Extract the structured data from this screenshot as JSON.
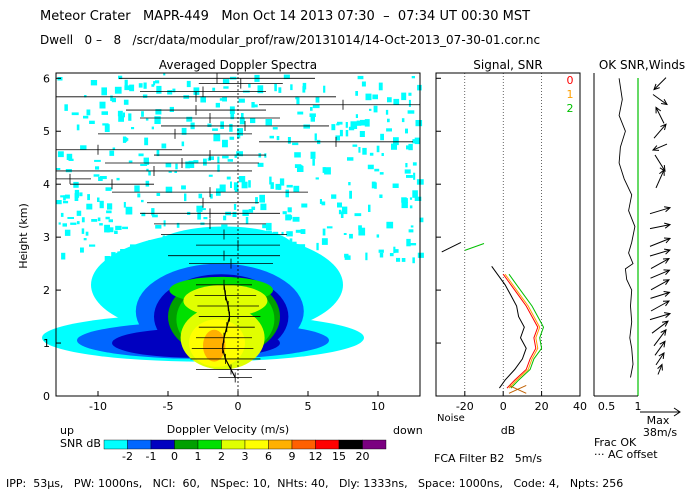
{
  "header": {
    "title": "Meteor Crater   MAPR-449   Mon Oct 14 2013 07:30  –  07:34 UT 00:30 MST",
    "dwell": "Dwell   0 –   8   /scr/data/modular_prof/raw/20131014/14-Oct-2013_07-30-01.cor.nc"
  },
  "footer": {
    "params": "IPP:  53μs,   PW: 1000ns,   NCI:  60,   NSpec: 10,  NHts: 40,   Dly: 1333ns,   Space: 1000ns,   Code: 4,   Npts: 256",
    "fca_filter": "FCA Filter B2   5m/s"
  },
  "colors": {
    "contour": [
      "#00ffff",
      "#0066ff",
      "#0000c0",
      "#00a000",
      "#00e000",
      "#e0ff00",
      "#ffff00",
      "#ffb000",
      "#ff6000",
      "#ff0000",
      "#000000",
      "#7a0080"
    ],
    "snr0": "#ff0000",
    "snr1": "#ffa000",
    "snr2": "#00c000"
  },
  "chart_data": [
    {
      "type": "heatmap",
      "title": "Averaged Doppler Spectra",
      "xlabel": "Doppler Velocity (m/s)",
      "ylabel": "Height (km)",
      "xlim": [
        -13,
        13
      ],
      "ylim": [
        0,
        6.1
      ],
      "xticks": [
        -10,
        -5,
        0,
        5,
        10
      ],
      "yticks": [
        0,
        1,
        2,
        3,
        4,
        5,
        6
      ],
      "left_note": "up",
      "right_note": "down",
      "colorbar": {
        "title": "SNR dB",
        "labels": [
          "-2",
          "-1",
          "0",
          "1",
          "2",
          "3",
          "6",
          "9",
          "12",
          "15",
          "20"
        ]
      },
      "core_profile": {
        "heights": [
          0.35,
          0.5,
          0.7,
          0.9,
          1.1,
          1.3,
          1.5,
          1.7,
          1.9,
          2.1
        ],
        "velocity": [
          -0.2,
          -0.5,
          -0.9,
          -1.1,
          -1.0,
          -0.8,
          -0.6,
          -0.7,
          -0.9,
          -1.0
        ],
        "halfwidth": [
          1.2,
          2.5,
          2.5,
          2.2,
          2.0,
          2.0,
          2.2,
          2.2,
          2.2,
          2.0
        ]
      },
      "upper_lines": [
        {
          "h": 6.0,
          "v": -1.5,
          "w": 7.0
        },
        {
          "h": 5.9,
          "v": 0.2,
          "w": 3.0
        },
        {
          "h": 5.75,
          "v": -2.5,
          "w": 4.5
        },
        {
          "h": 5.65,
          "v": -3.0,
          "w": 10.0
        },
        {
          "h": 5.5,
          "v": 7.5,
          "w": 6.0
        },
        {
          "h": 5.4,
          "v": -3.0,
          "w": 5.0
        },
        {
          "h": 5.25,
          "v": -2.0,
          "w": 5.0
        },
        {
          "h": 5.1,
          "v": 0.5,
          "w": 6.0
        },
        {
          "h": 4.95,
          "v": -4.5,
          "w": 5.5
        },
        {
          "h": 4.8,
          "v": 7.0,
          "w": 5.5
        },
        {
          "h": 4.65,
          "v": -10.0,
          "w": 6.0
        },
        {
          "h": 4.55,
          "v": -2.0,
          "w": 4.0
        },
        {
          "h": 4.4,
          "v": -4.0,
          "w": 5.5
        },
        {
          "h": 4.25,
          "v": -6.0,
          "w": 7.0
        },
        {
          "h": 4.1,
          "v": -12.0,
          "w": 1.5
        },
        {
          "h": 4.0,
          "v": -9.0,
          "w": 3.0
        },
        {
          "h": 3.85,
          "v": -2.0,
          "w": 7.0
        },
        {
          "h": 3.65,
          "v": -2.5,
          "w": 4.0
        },
        {
          "h": 3.45,
          "v": -2.0,
          "w": 5.0
        },
        {
          "h": 3.25,
          "v": -2.0,
          "w": 4.0
        },
        {
          "h": 3.05,
          "v": -1.0,
          "w": 4.5
        },
        {
          "h": 2.85,
          "v": 0.0,
          "w": 3.0
        },
        {
          "h": 2.65,
          "v": -1.0,
          "w": 4.0
        },
        {
          "h": 2.5,
          "v": -0.5,
          "w": 3.0
        }
      ]
    },
    {
      "type": "line",
      "title": "Signal, SNR",
      "xlabel": "dB",
      "xlim": [
        -35,
        40
      ],
      "xticks": [
        -20,
        0,
        20,
        40
      ],
      "noise_label": "Noise",
      "series": [
        {
          "name": "signal",
          "heights": [
            0.15,
            0.3,
            0.5,
            0.7,
            0.9,
            1.1,
            1.3,
            1.5,
            1.7,
            1.9,
            2.1,
            2.3,
            2.45
          ],
          "values": [
            -2,
            1,
            6,
            10,
            12,
            9,
            11,
            8,
            7,
            4,
            1,
            -3,
            -6
          ]
        },
        {
          "name": "0",
          "heights": [
            0.15,
            0.3,
            0.5,
            0.7,
            0.9,
            1.1,
            1.3,
            1.5,
            1.7,
            1.9,
            2.1,
            2.3
          ],
          "values": [
            2,
            6,
            12,
            14,
            17,
            16,
            18,
            15,
            12,
            8,
            4,
            0
          ]
        },
        {
          "name": "1",
          "heights": [
            0.15,
            0.3,
            0.5,
            0.7,
            0.9,
            1.1,
            1.3,
            1.5,
            1.7,
            1.9,
            2.1,
            2.3
          ],
          "values": [
            3,
            7,
            13,
            15,
            18,
            17,
            19,
            16,
            13,
            9,
            5,
            1
          ]
        },
        {
          "name": "2",
          "heights": [
            0.15,
            0.3,
            0.5,
            0.7,
            0.9,
            1.1,
            1.3,
            1.5,
            1.7,
            1.9,
            2.1,
            2.3
          ],
          "values": [
            4,
            8,
            14,
            16,
            20,
            19,
            21,
            18,
            15,
            11,
            7,
            3
          ]
        }
      ],
      "legend": [
        "0",
        "1",
        "2"
      ]
    },
    {
      "type": "line",
      "title": "OK SNR,Winds",
      "xlabel": "Frac OK",
      "xticks": [
        "0.5",
        "1"
      ],
      "note": "··· AC offset",
      "max_wind_label": "Max",
      "max_wind_value": "38m/s",
      "snr_profile": {
        "heights": [
          6.0,
          5.6,
          5.3,
          5.0,
          4.7,
          4.4,
          4.1,
          3.8,
          3.5,
          3.2,
          2.9,
          2.7,
          2.5,
          2.4,
          2.2,
          2.0,
          1.7,
          1.4,
          1.1,
          0.9,
          0.6,
          0.35
        ],
        "values": [
          0.7,
          0.75,
          0.7,
          0.8,
          0.72,
          0.7,
          0.78,
          0.9,
          0.85,
          0.95,
          0.9,
          0.85,
          0.92,
          0.8,
          0.82,
          0.9,
          0.88,
          0.9,
          0.87,
          0.9,
          0.92,
          0.88
        ]
      },
      "winds": [
        {
          "h": 5.9,
          "u": -0.6,
          "v": -0.6
        },
        {
          "h": 5.6,
          "u": 0.7,
          "v": -0.5
        },
        {
          "h": 5.3,
          "u": -0.4,
          "v": 0.8
        },
        {
          "h": 5.0,
          "u": 0.6,
          "v": 0.7
        },
        {
          "h": 4.7,
          "u": -0.7,
          "v": -0.3
        },
        {
          "h": 4.4,
          "u": 0.5,
          "v": -0.8
        },
        {
          "h": 4.1,
          "u": 0.4,
          "v": 0.9
        },
        {
          "h": 3.5,
          "u": 1.0,
          "v": 0.3
        },
        {
          "h": 3.2,
          "u": 1.0,
          "v": 0.2
        },
        {
          "h": 2.9,
          "u": 1.0,
          "v": 0.4
        },
        {
          "h": 2.7,
          "u": 1.0,
          "v": 0.3
        },
        {
          "h": 2.5,
          "u": 0.9,
          "v": 0.5
        },
        {
          "h": 2.3,
          "u": 0.95,
          "v": 0.4
        },
        {
          "h": 2.1,
          "u": 0.9,
          "v": 0.5
        },
        {
          "h": 1.9,
          "u": 0.95,
          "v": 0.3
        },
        {
          "h": 1.7,
          "u": 0.9,
          "v": 0.5
        },
        {
          "h": 1.5,
          "u": 1.0,
          "v": 0.3
        },
        {
          "h": 1.3,
          "u": 0.8,
          "v": 0.6
        },
        {
          "h": 1.1,
          "u": 0.6,
          "v": 0.8
        },
        {
          "h": 0.9,
          "u": 0.5,
          "v": 0.7
        },
        {
          "h": 0.7,
          "u": 0.4,
          "v": 0.6
        },
        {
          "h": 0.5,
          "u": 0.2,
          "v": 0.5
        }
      ]
    }
  ]
}
